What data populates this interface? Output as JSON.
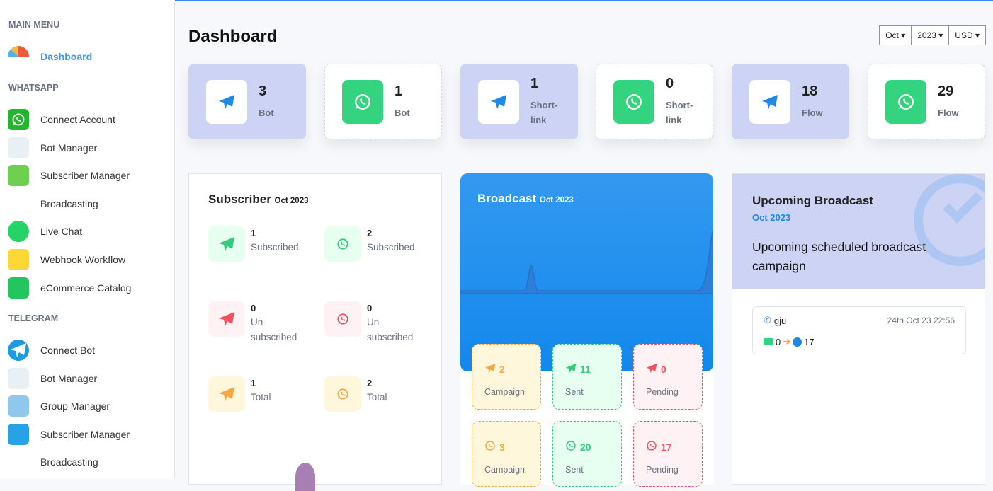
{
  "sidebar": {
    "main_menu": "MAIN MENU",
    "dashboard": "Dashboard",
    "whatsapp_section": "WHATSAPP",
    "whatsapp_items": [
      {
        "label": "Connect Account",
        "icon": "whatsapp-icon"
      },
      {
        "label": "Bot Manager",
        "icon": "robot-icon"
      },
      {
        "label": "Subscriber Manager",
        "icon": "contacts-icon"
      },
      {
        "label": "Broadcasting",
        "icon": "broadcast-icon"
      },
      {
        "label": "Live Chat",
        "icon": "chat-icon"
      },
      {
        "label": "Webhook Workflow",
        "icon": "puzzle-icon"
      },
      {
        "label": "eCommerce Catalog",
        "icon": "shopping-bag-icon"
      }
    ],
    "telegram_section": "TELEGRAM",
    "telegram_items": [
      {
        "label": "Connect Bot",
        "icon": "telegram-icon"
      },
      {
        "label": "Bot Manager",
        "icon": "robot-icon"
      },
      {
        "label": "Group Manager",
        "icon": "group-icon"
      },
      {
        "label": "Subscriber Manager",
        "icon": "contacts-icon"
      },
      {
        "label": "Broadcasting",
        "icon": "broadcast-icon"
      }
    ]
  },
  "header": {
    "title": "Dashboard",
    "month": "Oct",
    "year": "2023",
    "currency": "USD"
  },
  "stats": [
    {
      "value": "3",
      "label": "Bot",
      "type": "telegram"
    },
    {
      "value": "1",
      "label": "Bot",
      "type": "whatsapp"
    },
    {
      "value": "1",
      "label": "Short-link",
      "type": "telegram"
    },
    {
      "value": "0",
      "label": "Short-link",
      "type": "whatsapp"
    },
    {
      "value": "18",
      "label": "Flow",
      "type": "telegram"
    },
    {
      "value": "29",
      "label": "Flow",
      "type": "whatsapp"
    }
  ],
  "subscriber": {
    "title": "Subscriber",
    "period": "Oct 2023",
    "items": [
      {
        "value": "1",
        "label": "Subscribed"
      },
      {
        "value": "2",
        "label": "Subscribed"
      },
      {
        "value": "0",
        "label": "Un-subscribed"
      },
      {
        "value": "0",
        "label": "Un-subscribed"
      },
      {
        "value": "1",
        "label": "Total"
      },
      {
        "value": "2",
        "label": "Total"
      }
    ]
  },
  "broadcast": {
    "title": "Broadcast",
    "period": "Oct 2023",
    "telegram": [
      {
        "value": "2",
        "label": "Campaign"
      },
      {
        "value": "11",
        "label": "Sent"
      },
      {
        "value": "0",
        "label": "Pending"
      }
    ],
    "whatsapp": [
      {
        "value": "3",
        "label": "Campaign"
      },
      {
        "value": "20",
        "label": "Sent"
      },
      {
        "value": "17",
        "label": "Pending"
      }
    ]
  },
  "upcoming": {
    "title": "Upcoming Broadcast",
    "period": "Oct 2023",
    "description": "Upcoming scheduled broadcast campaign",
    "entry": {
      "name": "gju",
      "datetime": "24th Oct 23 22:56",
      "sent": "0",
      "subscribers": "17"
    }
  },
  "colors": {
    "accent": "#3b82f6",
    "purple_card": "#cdd3f5",
    "green": "#34d37f",
    "orange": "#f5a742",
    "red": "#f0525f"
  }
}
